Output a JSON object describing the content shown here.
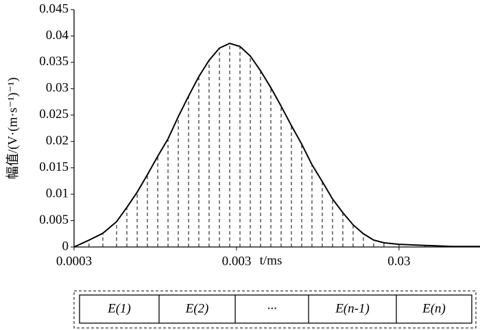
{
  "chart_data": {
    "type": "line",
    "x_label": "t/ms",
    "y_label": "幅值/(V·(m·s⁻¹)⁻¹)",
    "x": [
      0.0003,
      0.000371,
      0.000451,
      0.000548,
      0.000634,
      0.000734,
      0.000848,
      0.000982,
      0.001136,
      0.001314,
      0.00152,
      0.001758,
      0.002034,
      0.002354,
      0.002723,
      0.00315,
      0.003645,
      0.004216,
      0.004878,
      0.005643,
      0.006528,
      0.00755,
      0.008736,
      0.01011,
      0.01169,
      0.01353,
      0.01565,
      0.01811,
      0.02095,
      0.02423,
      0.03,
      0.0434,
      0.064,
      0.0945
    ],
    "values": [
      0,
      0.0013,
      0.0026,
      0.0048,
      0.0075,
      0.0104,
      0.0137,
      0.0172,
      0.0205,
      0.0247,
      0.0286,
      0.0323,
      0.0354,
      0.0377,
      0.0386,
      0.038,
      0.0362,
      0.0334,
      0.0302,
      0.0267,
      0.023,
      0.0195,
      0.0156,
      0.0124,
      0.0091,
      0.0065,
      0.0042,
      0.0025,
      0.0013,
      0.0008,
      0.0005,
      0.0003,
      0.0001,
      0.0001
    ],
    "color": "#000000",
    "xlim": [
      0.0003,
      0.0945
    ],
    "xticks": [
      0.0003,
      0.003,
      0.03
    ],
    "xscale": "log",
    "ylim": [
      0,
      0.045
    ],
    "yticks": [
      0,
      0.005,
      0.01,
      0.015,
      0.02,
      0.025,
      0.03,
      0.035,
      0.04,
      0.045
    ],
    "grid": false,
    "drop_lines": true
  },
  "sequence": {
    "labels": [
      "E(1)",
      "E(2)",
      "···",
      "E(n-1)",
      "E(n)"
    ]
  }
}
